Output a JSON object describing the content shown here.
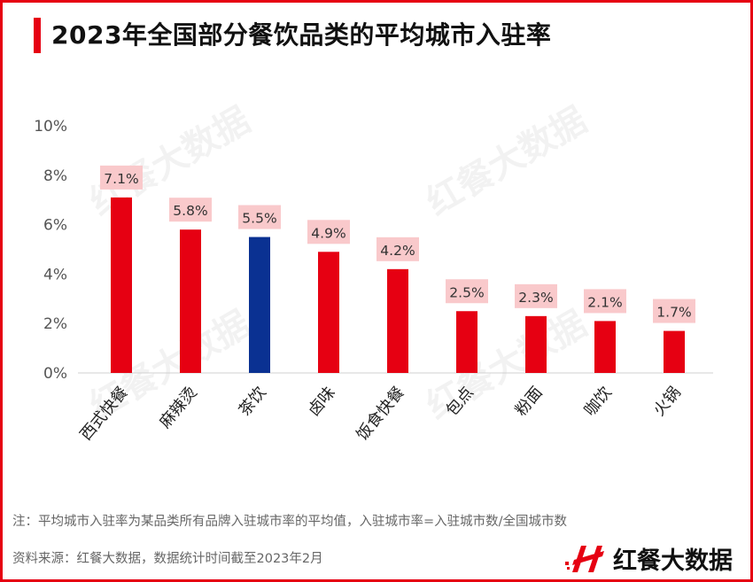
{
  "title": "2023年全国部分餐饮品类的平均城市入驻率",
  "chart_data": {
    "type": "bar",
    "categories": [
      "西式快餐",
      "麻辣烫",
      "茶饮",
      "卤味",
      "饭食快餐",
      "包点",
      "粉面",
      "咖饮",
      "火锅"
    ],
    "values": [
      7.1,
      5.8,
      5.5,
      4.9,
      4.2,
      2.5,
      2.3,
      2.1,
      1.7
    ],
    "data_labels": [
      "7.1%",
      "5.8%",
      "5.5%",
      "4.9%",
      "4.2%",
      "2.5%",
      "2.3%",
      "2.1%",
      "1.7%"
    ],
    "yticks": [
      "0%",
      "2%",
      "4%",
      "6%",
      "8%",
      "10%"
    ],
    "ylim": [
      0,
      10
    ],
    "highlight_category": "茶饮",
    "colors": {
      "bar": "#e60012",
      "highlight": "#0a3192",
      "label_bg": "#f9c9cb"
    },
    "grid": false
  },
  "footer": {
    "note": "注：平均城市入驻率为某品类所有品牌入驻城市率的平均值，入驻城市率=入驻城市数/全国城市数",
    "source": "资料来源：红餐大数据，数据统计时间截至2023年2月"
  },
  "logo": {
    "text": "红餐大数据"
  },
  "watermark": "红餐大数据"
}
